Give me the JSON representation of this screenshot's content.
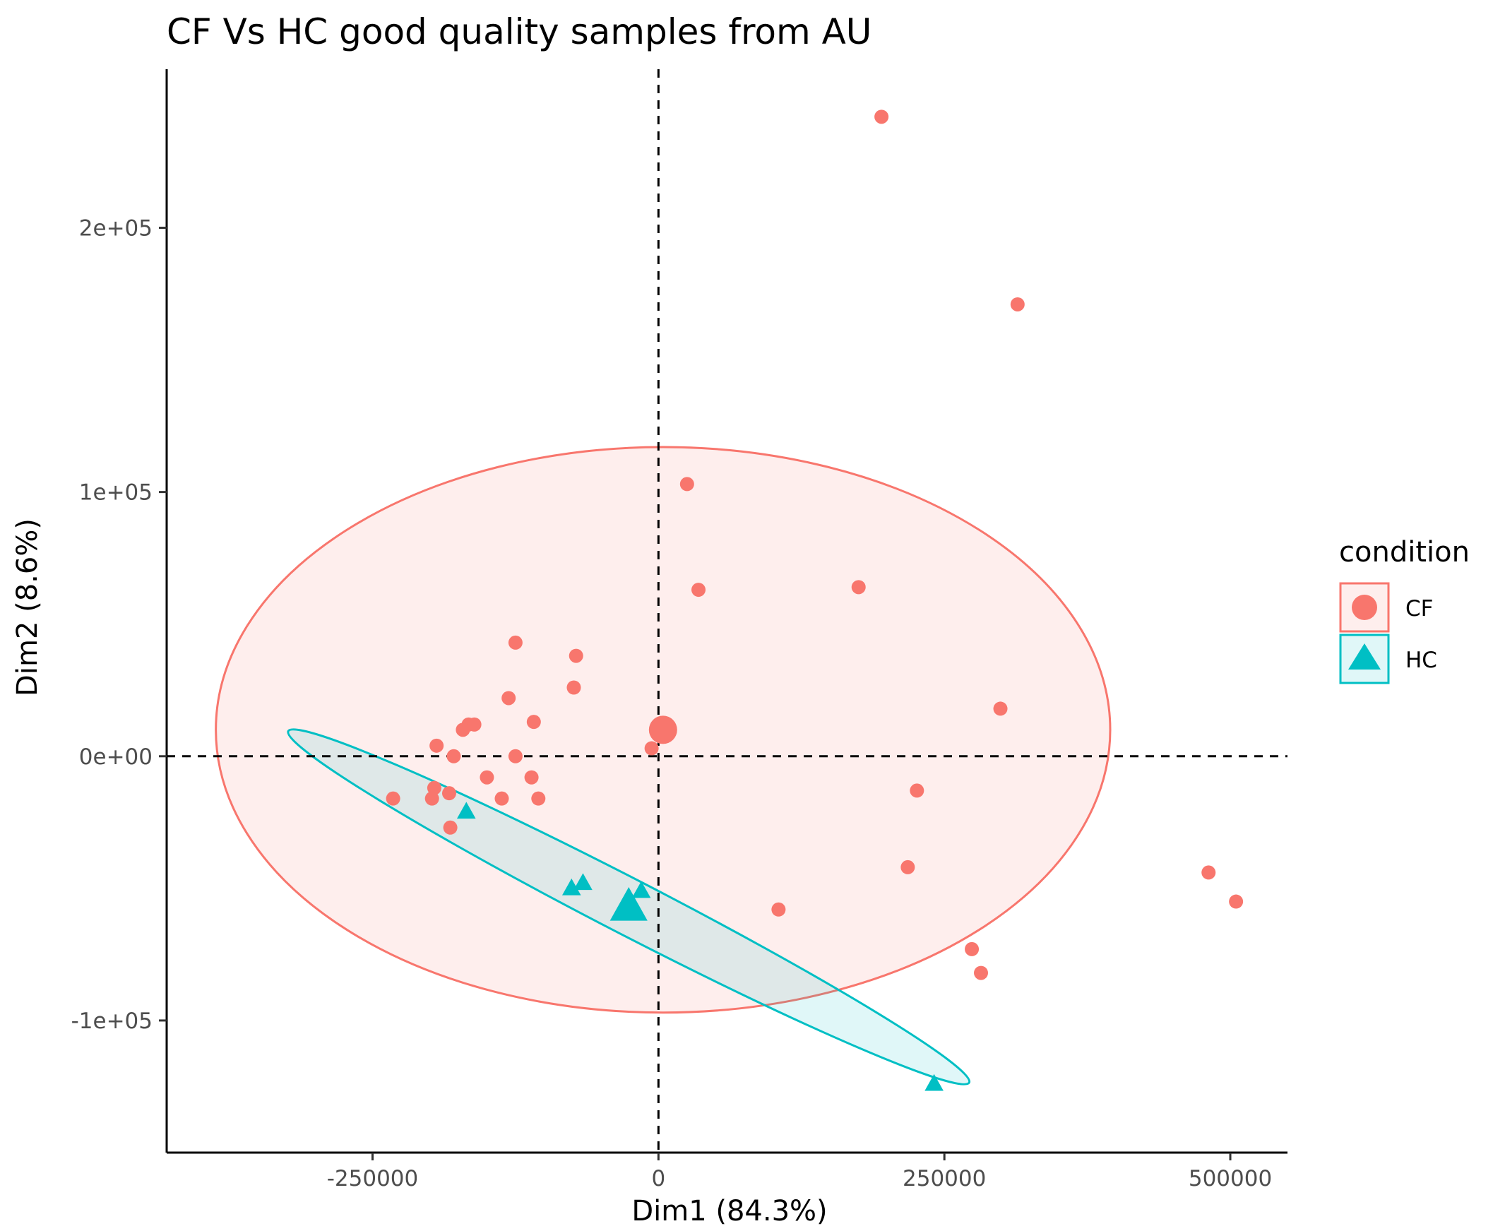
{
  "chart_data": {
    "type": "scatter",
    "title": "CF Vs HC good quality samples from AU",
    "xlabel": "Dim1 (84.3%)",
    "ylabel": "Dim2 (8.6%)",
    "xlim": [
      -430000,
      550000
    ],
    "ylim": [
      -150000,
      260000
    ],
    "x_ticks": [
      {
        "value": -250000,
        "label": "-250000"
      },
      {
        "value": 0,
        "label": "0"
      },
      {
        "value": 250000,
        "label": "250000"
      },
      {
        "value": 500000,
        "label": "500000"
      }
    ],
    "y_ticks": [
      {
        "value": -100000,
        "label": "-1e+05"
      },
      {
        "value": 0,
        "label": "0e+00"
      },
      {
        "value": 100000,
        "label": "1e+05"
      },
      {
        "value": 200000,
        "label": "2e+05"
      }
    ],
    "reference_lines": {
      "x": 0,
      "y": 0,
      "style": "dashed"
    },
    "grid": false,
    "legend": {
      "title": "condition",
      "position": "right"
    },
    "series": [
      {
        "name": "CF",
        "color": "#F8766D",
        "marker": "circle",
        "centroid": [
          4000,
          10000
        ],
        "ellipse": {
          "center": [
            4000,
            10000
          ],
          "rx": 391000,
          "ry": 107000,
          "angle_deg": 0
        },
        "points": [
          [
            195000,
            242000
          ],
          [
            314000,
            171000
          ],
          [
            25000,
            103000
          ],
          [
            35000,
            63000
          ],
          [
            175000,
            64000
          ],
          [
            -125000,
            43000
          ],
          [
            -72000,
            38000
          ],
          [
            -74000,
            26000
          ],
          [
            -131000,
            22000
          ],
          [
            -109000,
            13000
          ],
          [
            -166000,
            12000
          ],
          [
            -161000,
            12000
          ],
          [
            -171000,
            10000
          ],
          [
            -194000,
            4000
          ],
          [
            -6000,
            3000
          ],
          [
            -179000,
            0
          ],
          [
            -125000,
            0
          ],
          [
            299000,
            18000
          ],
          [
            -150000,
            -8000
          ],
          [
            -111000,
            -8000
          ],
          [
            -196000,
            -12000
          ],
          [
            -183000,
            -14000
          ],
          [
            -198000,
            -16000
          ],
          [
            -137000,
            -16000
          ],
          [
            -105000,
            -16000
          ],
          [
            -232000,
            -16000
          ],
          [
            -182000,
            -27000
          ],
          [
            226000,
            -13000
          ],
          [
            218000,
            -42000
          ],
          [
            105000,
            -58000
          ],
          [
            481000,
            -44000
          ],
          [
            505000,
            -55000
          ],
          [
            274000,
            -73000
          ],
          [
            282000,
            -82000
          ]
        ]
      },
      {
        "name": "HC",
        "color": "#00BFC4",
        "marker": "triangle",
        "centroid": [
          -26000,
          -57000
        ],
        "ellipse": {
          "center": [
            -26000,
            -57000
          ],
          "rx": 335000,
          "ry": 10500,
          "angle_deg": 27.3
        },
        "points": [
          [
            -168000,
            -21000
          ],
          [
            -76000,
            -50000
          ],
          [
            -66000,
            -48000
          ],
          [
            -15000,
            -51000
          ],
          [
            241000,
            -124000
          ]
        ]
      }
    ]
  }
}
